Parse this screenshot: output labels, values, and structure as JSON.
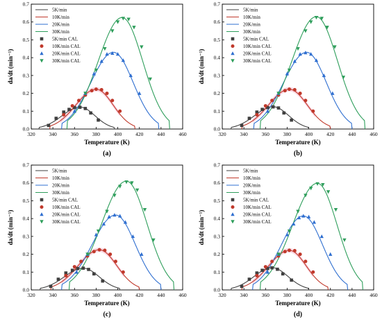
{
  "colors": {
    "5K/min": "#404040",
    "10K/min": "#c0392b",
    "20K/min": "#2f6fd0",
    "30K/min": "#2e9e5b",
    "pink_band": "#f6b3c8"
  },
  "chart_data": [
    {
      "type": "scatter",
      "panel_label": "(a)",
      "xlabel": "Temperature (K)",
      "ylabel": "da/dt (min⁻¹)",
      "xlim": [
        320,
        460
      ],
      "ylim": [
        0,
        0.7
      ],
      "xticks": [
        320,
        340,
        360,
        380,
        400,
        420,
        440,
        460
      ],
      "yticks": [
        0.0,
        0.1,
        0.2,
        0.3,
        0.4,
        0.5,
        0.6,
        0.7
      ],
      "grid": false,
      "legend_position": "top-left",
      "series": [
        {
          "name": "5K/min",
          "kind": "line",
          "color": "#404040",
          "peak_x": 365,
          "peak_y": 0.123,
          "start_x": 327,
          "end_x": 397
        },
        {
          "name": "10K/min",
          "kind": "line",
          "color": "#c0392b",
          "peak_x": 380,
          "peak_y": 0.223,
          "start_x": 337,
          "end_x": 416
        },
        {
          "name": "20K/min",
          "kind": "line",
          "color": "#2f6fd0",
          "peak_x": 396,
          "peak_y": 0.43,
          "start_x": 348,
          "end_x": 438
        },
        {
          "name": "30K/min",
          "kind": "line",
          "color": "#2e9e5b",
          "peak_x": 404,
          "peak_y": 0.625,
          "start_x": 353,
          "end_x": 448
        },
        {
          "name": "5K/min CAL",
          "kind": "points",
          "marker": "square",
          "color": "#404040",
          "x": [
            336,
            343,
            350,
            355,
            360,
            365,
            370,
            375,
            382
          ],
          "y": [
            0.02,
            0.06,
            0.095,
            0.11,
            0.12,
            0.122,
            0.115,
            0.09,
            0.05
          ]
        },
        {
          "name": "10K/min CAL",
          "kind": "points",
          "marker": "circle",
          "color": "#c0392b",
          "x": [
            350,
            358,
            364,
            370,
            376,
            380,
            385,
            390,
            395,
            402
          ],
          "y": [
            0.08,
            0.13,
            0.16,
            0.19,
            0.215,
            0.223,
            0.22,
            0.2,
            0.16,
            0.1
          ]
        },
        {
          "name": "20K/min CAL",
          "kind": "points",
          "marker": "triangle-up",
          "color": "#2f6fd0",
          "x": [
            360,
            370,
            378,
            385,
            390,
            395,
            400,
            405,
            412,
            420
          ],
          "y": [
            0.1,
            0.2,
            0.31,
            0.38,
            0.42,
            0.425,
            0.42,
            0.385,
            0.3,
            0.2
          ]
        },
        {
          "name": "30K/min CAL",
          "kind": "points",
          "marker": "triangle-down",
          "color": "#2e9e5b",
          "x": [
            370,
            380,
            388,
            395,
            400,
            405,
            410,
            415,
            422,
            430
          ],
          "y": [
            0.2,
            0.33,
            0.45,
            0.55,
            0.6,
            0.62,
            0.615,
            0.57,
            0.46,
            0.28
          ]
        }
      ]
    },
    {
      "type": "scatter",
      "panel_label": "(b)",
      "xlabel": "Temperature (K)",
      "ylabel": "da/dt (min⁻¹)",
      "xlim": [
        320,
        460
      ],
      "ylim": [
        0,
        0.7
      ],
      "xticks": [
        320,
        340,
        360,
        380,
        400,
        420,
        440,
        460
      ],
      "yticks": [
        0.0,
        0.1,
        0.2,
        0.3,
        0.4,
        0.5,
        0.6,
        0.7
      ],
      "grid": false,
      "legend_position": "top-left",
      "series": [
        {
          "name": "5K/min",
          "kind": "line",
          "color": "#404040",
          "peak_x": 367,
          "peak_y": 0.125,
          "start_x": 328,
          "end_x": 400
        },
        {
          "name": "10K/min",
          "kind": "line",
          "color": "#c0392b",
          "peak_x": 382,
          "peak_y": 0.223,
          "start_x": 338,
          "end_x": 420
        },
        {
          "name": "20K/min",
          "kind": "line",
          "color": "#2f6fd0",
          "peak_x": 398,
          "peak_y": 0.43,
          "start_x": 349,
          "end_x": 440
        },
        {
          "name": "30K/min",
          "kind": "line",
          "color": "#2e9e5b",
          "peak_x": 407,
          "peak_y": 0.63,
          "start_x": 355,
          "end_x": 452
        },
        {
          "name": "5K/min CAL",
          "kind": "points",
          "marker": "square",
          "color": "#404040",
          "x": [
            338,
            345,
            352,
            357,
            362,
            367,
            372,
            377,
            384
          ],
          "y": [
            0.02,
            0.06,
            0.095,
            0.11,
            0.12,
            0.124,
            0.118,
            0.09,
            0.05
          ]
        },
        {
          "name": "10K/min CAL",
          "kind": "points",
          "marker": "circle",
          "color": "#c0392b",
          "x": [
            352,
            360,
            366,
            372,
            378,
            382,
            387,
            392,
            397,
            404
          ],
          "y": [
            0.08,
            0.13,
            0.16,
            0.19,
            0.215,
            0.223,
            0.22,
            0.2,
            0.16,
            0.1
          ]
        },
        {
          "name": "20K/min CAL",
          "kind": "points",
          "marker": "triangle-up",
          "color": "#2f6fd0",
          "x": [
            362,
            372,
            380,
            387,
            392,
            397,
            402,
            407,
            414,
            422
          ],
          "y": [
            0.1,
            0.2,
            0.31,
            0.38,
            0.42,
            0.428,
            0.42,
            0.385,
            0.3,
            0.2
          ]
        },
        {
          "name": "30K/min CAL",
          "kind": "points",
          "marker": "triangle-down",
          "color": "#2e9e5b",
          "x": [
            372,
            382,
            390,
            397,
            402,
            407,
            412,
            417,
            424,
            432
          ],
          "y": [
            0.2,
            0.33,
            0.45,
            0.55,
            0.6,
            0.625,
            0.62,
            0.57,
            0.46,
            0.29
          ]
        }
      ]
    },
    {
      "type": "scatter",
      "panel_label": "(c)",
      "xlabel": "Temperature (K)",
      "ylabel": "da/dt (min⁻¹)",
      "xlim": [
        320,
        460
      ],
      "ylim": [
        0,
        0.7
      ],
      "xticks": [
        320,
        340,
        360,
        380,
        400,
        420,
        440,
        460
      ],
      "yticks": [
        0.0,
        0.1,
        0.2,
        0.3,
        0.4,
        0.5,
        0.6,
        0.7
      ],
      "grid": false,
      "legend_position": "top-left",
      "series": [
        {
          "name": "5K/min",
          "kind": "line",
          "color": "#404040",
          "peak_x": 368,
          "peak_y": 0.122,
          "start_x": 328,
          "end_x": 402
        },
        {
          "name": "10K/min",
          "kind": "line",
          "color": "#c0392b",
          "peak_x": 383,
          "peak_y": 0.225,
          "start_x": 338,
          "end_x": 420
        },
        {
          "name": "20K/min",
          "kind": "line",
          "color": "#2f6fd0",
          "peak_x": 398,
          "peak_y": 0.42,
          "start_x": 348,
          "end_x": 440
        },
        {
          "name": "30K/min",
          "kind": "line",
          "color": "#2e9e5b",
          "peak_x": 408,
          "peak_y": 0.61,
          "start_x": 355,
          "end_x": 452
        },
        {
          "name": "5K/min CAL",
          "kind": "points",
          "marker": "square",
          "color": "#404040",
          "x": [
            338,
            345,
            352,
            358,
            363,
            368,
            373,
            378,
            386
          ],
          "y": [
            0.02,
            0.06,
            0.095,
            0.11,
            0.12,
            0.122,
            0.115,
            0.09,
            0.05
          ]
        },
        {
          "name": "10K/min CAL",
          "kind": "points",
          "marker": "circle",
          "color": "#c0392b",
          "x": [
            352,
            360,
            366,
            372,
            378,
            383,
            388,
            393,
            398,
            405
          ],
          "y": [
            0.08,
            0.13,
            0.16,
            0.19,
            0.215,
            0.225,
            0.222,
            0.2,
            0.16,
            0.1
          ]
        },
        {
          "name": "20K/min CAL",
          "kind": "points",
          "marker": "triangle-up",
          "color": "#2f6fd0",
          "x": [
            362,
            372,
            380,
            387,
            392,
            397,
            402,
            407,
            414,
            422
          ],
          "y": [
            0.1,
            0.2,
            0.31,
            0.37,
            0.41,
            0.42,
            0.415,
            0.38,
            0.3,
            0.2
          ]
        },
        {
          "name": "30K/min CAL",
          "kind": "points",
          "marker": "triangle-down",
          "color": "#2e9e5b",
          "x": [
            372,
            382,
            390,
            397,
            402,
            408,
            413,
            418,
            425,
            433
          ],
          "y": [
            0.2,
            0.33,
            0.44,
            0.53,
            0.58,
            0.605,
            0.6,
            0.56,
            0.45,
            0.28
          ]
        }
      ]
    },
    {
      "type": "scatter",
      "panel_label": "(d)",
      "xlabel": "Temperature (K)",
      "ylabel": "da/dt (min⁻¹)",
      "xlim": [
        320,
        460
      ],
      "ylim": [
        0,
        0.7
      ],
      "xticks": [
        320,
        340,
        360,
        380,
        400,
        420,
        440,
        460
      ],
      "yticks": [
        0.0,
        0.1,
        0.2,
        0.3,
        0.4,
        0.5,
        0.6,
        0.7
      ],
      "grid": false,
      "legend_position": "top-left",
      "series": [
        {
          "name": "5K/min",
          "kind": "line",
          "color": "#404040",
          "peak_x": 366,
          "peak_y": 0.125,
          "start_x": 328,
          "end_x": 400
        },
        {
          "name": "10K/min",
          "kind": "line",
          "color": "#c0392b",
          "peak_x": 382,
          "peak_y": 0.222,
          "start_x": 338,
          "end_x": 418
        },
        {
          "name": "20K/min",
          "kind": "line",
          "color": "#2f6fd0",
          "peak_x": 395,
          "peak_y": 0.415,
          "start_x": 348,
          "end_x": 436
        },
        {
          "name": "30K/min",
          "kind": "line",
          "color": "#2e9e5b",
          "peak_x": 408,
          "peak_y": 0.598,
          "start_x": 355,
          "end_x": 450
        },
        {
          "name": "5K/min CAL",
          "kind": "points",
          "marker": "square",
          "color": "#404040",
          "x": [
            338,
            345,
            352,
            357,
            362,
            366,
            371,
            376,
            384
          ],
          "y": [
            0.02,
            0.06,
            0.095,
            0.11,
            0.12,
            0.124,
            0.116,
            0.09,
            0.055
          ]
        },
        {
          "name": "10K/min CAL",
          "kind": "points",
          "marker": "circle",
          "color": "#c0392b",
          "x": [
            352,
            360,
            366,
            372,
            378,
            382,
            387,
            392,
            397,
            404
          ],
          "y": [
            0.08,
            0.13,
            0.16,
            0.19,
            0.215,
            0.222,
            0.22,
            0.2,
            0.16,
            0.1
          ]
        },
        {
          "name": "20K/min CAL",
          "kind": "points",
          "marker": "triangle-up",
          "color": "#2f6fd0",
          "x": [
            362,
            372,
            380,
            386,
            391,
            395,
            400,
            405,
            412,
            420
          ],
          "y": [
            0.1,
            0.2,
            0.31,
            0.37,
            0.405,
            0.415,
            0.41,
            0.38,
            0.3,
            0.2
          ]
        },
        {
          "name": "30K/min CAL",
          "kind": "points",
          "marker": "triangle-down",
          "color": "#2e9e5b",
          "x": [
            372,
            382,
            390,
            397,
            402,
            408,
            413,
            418,
            425,
            433
          ],
          "y": [
            0.2,
            0.33,
            0.44,
            0.53,
            0.57,
            0.595,
            0.59,
            0.55,
            0.45,
            0.28
          ]
        }
      ]
    }
  ]
}
